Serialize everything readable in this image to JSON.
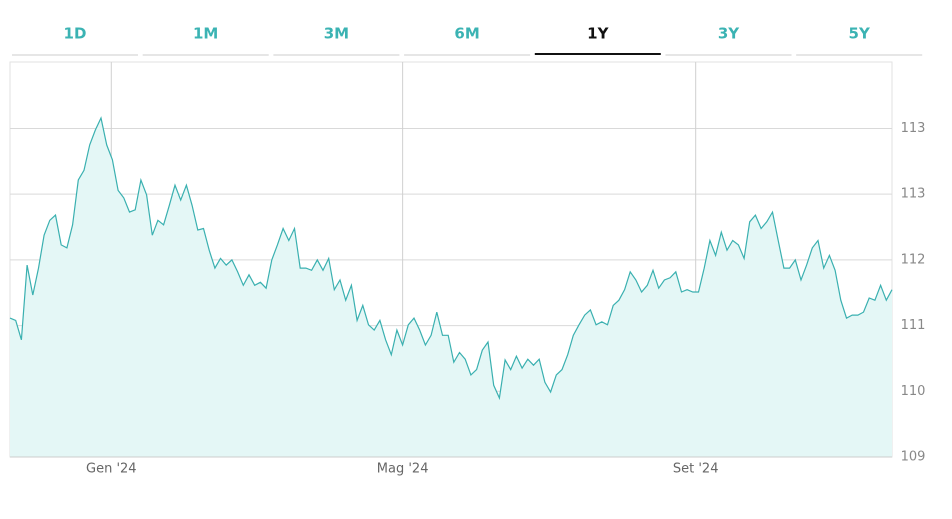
{
  "tabs": {
    "items": [
      "1D",
      "1M",
      "3M",
      "6M",
      "1Y",
      "3Y",
      "5Y"
    ],
    "active": "1Y"
  },
  "chart_data": {
    "type": "area",
    "color": "#3ab0b0",
    "fill": "#e4f7f6",
    "grid": true,
    "values": [
      110.86,
      110.83,
      110.57,
      111.57,
      111.17,
      111.53,
      111.97,
      112.17,
      112.24,
      111.84,
      111.8,
      112.11,
      112.71,
      112.84,
      113.18,
      113.38,
      113.54,
      113.18,
      112.98,
      112.57,
      112.47,
      112.28,
      112.31,
      112.71,
      112.51,
      111.97,
      112.17,
      112.11,
      112.37,
      112.64,
      112.44,
      112.64,
      112.37,
      112.04,
      112.06,
      111.77,
      111.53,
      111.66,
      111.57,
      111.64,
      111.48,
      111.3,
      111.44,
      111.3,
      111.34,
      111.26,
      111.64,
      111.84,
      112.06,
      111.9,
      112.06,
      111.53,
      111.53,
      111.5,
      111.64,
      111.5,
      111.66,
      111.24,
      111.37,
      111.1,
      111.3,
      110.83,
      111.03,
      110.77,
      110.7,
      110.83,
      110.57,
      110.37,
      110.7,
      110.5,
      110.77,
      110.86,
      110.7,
      110.5,
      110.63,
      110.94,
      110.63,
      110.63,
      110.27,
      110.4,
      110.31,
      110.1,
      110.17,
      110.43,
      110.54,
      109.96,
      109.79,
      110.3,
      110.17,
      110.35,
      110.19,
      110.31,
      110.23,
      110.31,
      110.0,
      109.87,
      110.1,
      110.17,
      110.37,
      110.63,
      110.77,
      110.9,
      110.97,
      110.77,
      110.81,
      110.77,
      111.03,
      111.1,
      111.24,
      111.48,
      111.37,
      111.21,
      111.3,
      111.5,
      111.26,
      111.37,
      111.4,
      111.48,
      111.21,
      111.24,
      111.21,
      111.21,
      111.53,
      111.9,
      111.7,
      112.01,
      111.77,
      111.9,
      111.84,
      111.66,
      112.15,
      112.24,
      112.06,
      112.15,
      112.28,
      111.9,
      111.53,
      111.53,
      111.64,
      111.37,
      111.57,
      111.8,
      111.9,
      111.53,
      111.7,
      111.5,
      111.1,
      110.86,
      110.9,
      110.9,
      110.94,
      111.13,
      111.1,
      111.3,
      111.1,
      111.24
    ],
    "xlim": [
      0,
      155
    ],
    "xticks": [
      {
        "value": 17.8,
        "label": "Gen '24"
      },
      {
        "value": 69,
        "label": "Mag '24"
      },
      {
        "value": 120.5,
        "label": "Set '24"
      }
    ],
    "ylim": [
      109,
      114.29
    ],
    "yticks": [
      109,
      {
        "value": 109.88,
        "label": "110"
      },
      {
        "value": 110.76,
        "label": "111"
      },
      {
        "value": 111.64,
        "label": "112"
      },
      {
        "value": 112.52,
        "label": "113"
      },
      {
        "value": 113.4,
        "label": "113"
      }
    ]
  }
}
